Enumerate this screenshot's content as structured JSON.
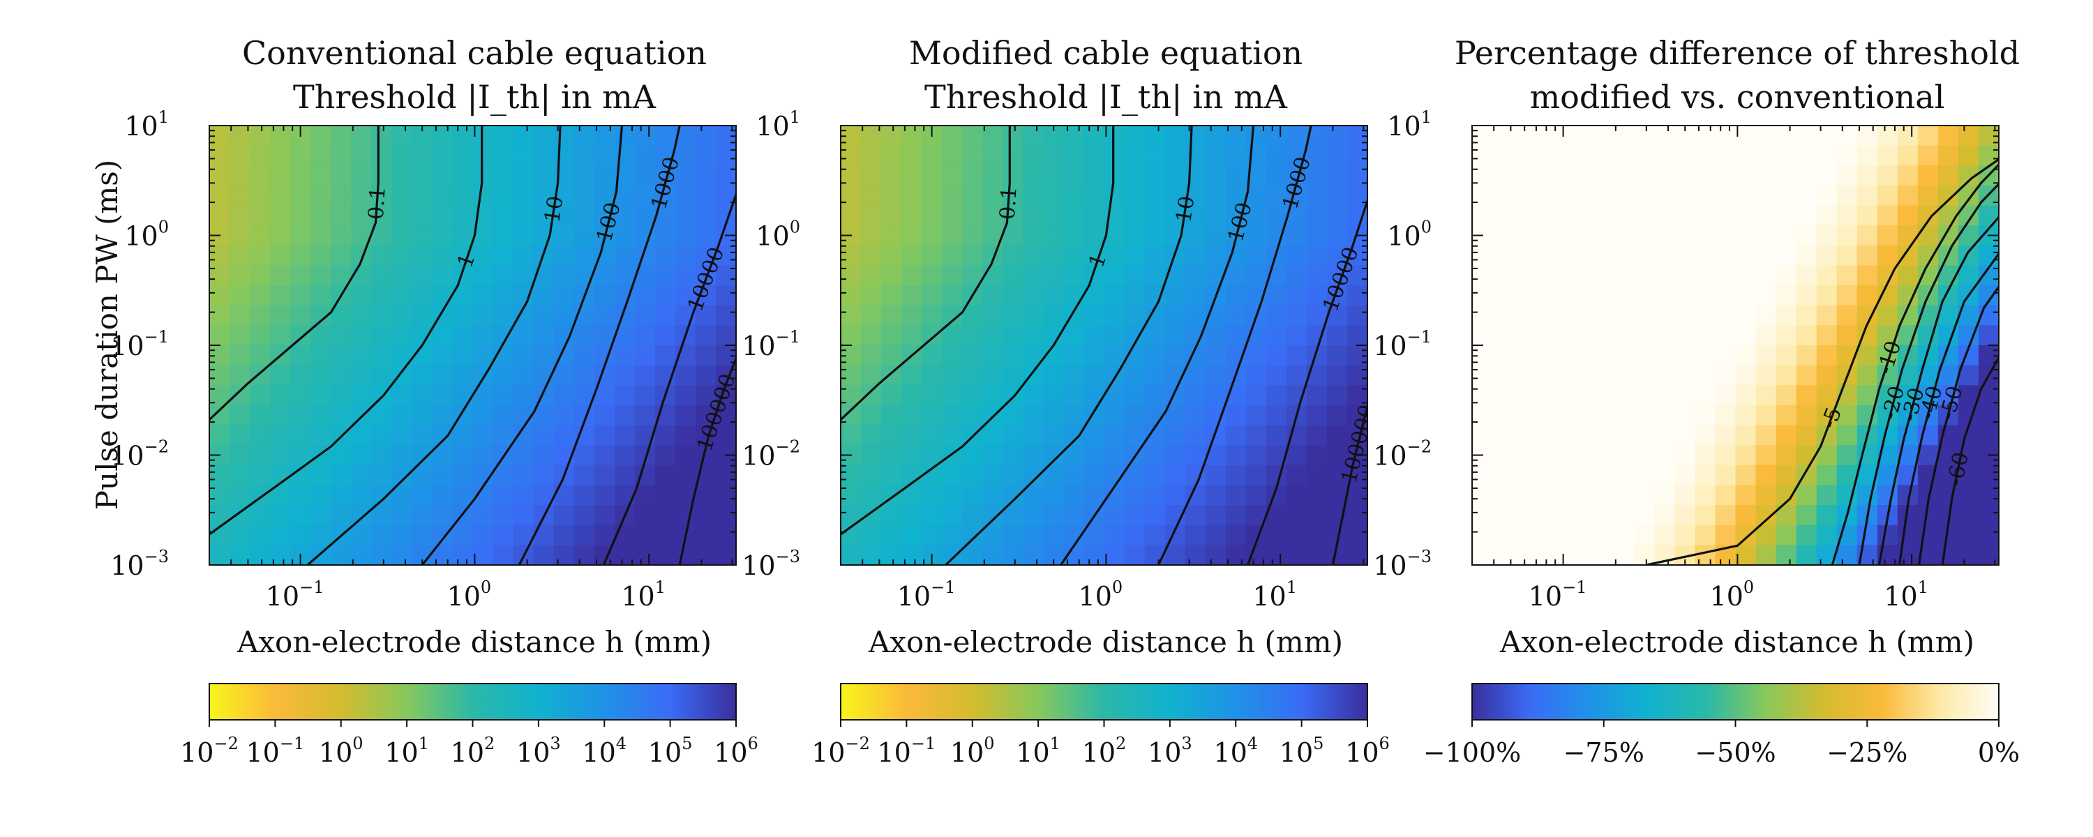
{
  "figure": {
    "shared_ylabel": "Pulse duration PW (ms)"
  },
  "chart_data": [
    {
      "type": "heatmap",
      "title": [
        "Conventional cable equation",
        "Threshold |I_th| in mA"
      ],
      "xlabel": "Axon-electrode distance h (mm)",
      "ylabel": "Pulse duration PW (ms)",
      "x_scale": "log",
      "y_scale": "log",
      "xlim": [
        0.03,
        31.6
      ],
      "ylim": [
        0.001,
        10
      ],
      "x_ticks": [
        {
          "base": "10",
          "exp": "−1",
          "value": 0.1
        },
        {
          "base": "10",
          "exp": "0",
          "value": 1
        },
        {
          "base": "10",
          "exp": "1",
          "value": 10
        }
      ],
      "y_ticks": [
        {
          "base": "10",
          "exp": "−3",
          "value": 0.001
        },
        {
          "base": "10",
          "exp": "−2",
          "value": 0.01
        },
        {
          "base": "10",
          "exp": "−1",
          "value": 0.1
        },
        {
          "base": "10",
          "exp": "0",
          "value": 1
        },
        {
          "base": "10",
          "exp": "1",
          "value": 10
        }
      ],
      "colorbar": {
        "scale": "log",
        "range": [
          0.01,
          1000000
        ],
        "colors": [
          "#f8f51c",
          "#fbba3a",
          "#d4bc2f",
          "#87c85c",
          "#2bb8a8",
          "#11b2cf",
          "#1f92e7",
          "#3a6cf5",
          "#3a2f9e"
        ],
        "ticks": [
          {
            "base": "10",
            "exp": "−2"
          },
          {
            "base": "10",
            "exp": "−1"
          },
          {
            "base": "10",
            "exp": "0"
          },
          {
            "base": "10",
            "exp": "1"
          },
          {
            "base": "10",
            "exp": "2"
          },
          {
            "base": "10",
            "exp": "3"
          },
          {
            "base": "10",
            "exp": "4"
          },
          {
            "base": "10",
            "exp": "5"
          },
          {
            "base": "10",
            "exp": "6"
          }
        ]
      },
      "contours": [
        {
          "level": "0.1",
          "points": [
            [
              0.03,
              0.021
            ],
            [
              0.05,
              0.045
            ],
            [
              0.09,
              0.1
            ],
            [
              0.15,
              0.2
            ],
            [
              0.22,
              0.55
            ],
            [
              0.27,
              1.3
            ],
            [
              0.28,
              3
            ],
            [
              0.28,
              10
            ]
          ]
        },
        {
          "level": "1",
          "points": [
            [
              0.03,
              0.0019
            ],
            [
              0.07,
              0.005
            ],
            [
              0.15,
              0.012
            ],
            [
              0.3,
              0.035
            ],
            [
              0.5,
              0.1
            ],
            [
              0.8,
              0.35
            ],
            [
              1.0,
              1.0
            ],
            [
              1.1,
              3
            ],
            [
              1.1,
              10
            ]
          ]
        },
        {
          "level": "10",
          "points": [
            [
              0.11,
              0.001
            ],
            [
              0.3,
              0.004
            ],
            [
              0.7,
              0.015
            ],
            [
              1.2,
              0.06
            ],
            [
              2.0,
              0.25
            ],
            [
              2.7,
              1.0
            ],
            [
              3.0,
              3
            ],
            [
              3.1,
              10
            ]
          ]
        },
        {
          "level": "100",
          "points": [
            [
              0.5,
              0.001
            ],
            [
              1.0,
              0.004
            ],
            [
              2.2,
              0.025
            ],
            [
              3.5,
              0.12
            ],
            [
              5.3,
              0.7
            ],
            [
              6.5,
              2.5
            ],
            [
              7.0,
              10
            ]
          ]
        },
        {
          "level": "1000",
          "points": [
            [
              1.8,
              0.001
            ],
            [
              3.2,
              0.006
            ],
            [
              5.0,
              0.04
            ],
            [
              7.5,
              0.25
            ],
            [
              11,
              1.5
            ],
            [
              14,
              6
            ],
            [
              15,
              10
            ]
          ]
        },
        {
          "level": "10000",
          "points": [
            [
              5.5,
              0.001
            ],
            [
              8.5,
              0.005
            ],
            [
              12,
              0.03
            ],
            [
              18,
              0.2
            ],
            [
              25,
              0.8
            ],
            [
              32,
              2.5
            ]
          ]
        },
        {
          "level": "100000",
          "points": [
            [
              15,
              0.001
            ],
            [
              18,
              0.004
            ],
            [
              22,
              0.015
            ],
            [
              27,
              0.04
            ],
            [
              32,
              0.08
            ]
          ]
        }
      ]
    },
    {
      "type": "heatmap",
      "title": [
        "Modified cable equation",
        "Threshold |I_th| in mA"
      ],
      "xlabel": "Axon-electrode distance h (mm)",
      "ylabel": "",
      "x_scale": "log",
      "y_scale": "log",
      "xlim": [
        0.03,
        31.6
      ],
      "ylim": [
        0.001,
        10
      ],
      "x_ticks": [
        {
          "base": "10",
          "exp": "−1",
          "value": 0.1
        },
        {
          "base": "10",
          "exp": "0",
          "value": 1
        },
        {
          "base": "10",
          "exp": "1",
          "value": 10
        }
      ],
      "y_ticks": [
        {
          "base": "10",
          "exp": "−3",
          "value": 0.001
        },
        {
          "base": "10",
          "exp": "−2",
          "value": 0.01
        },
        {
          "base": "10",
          "exp": "−1",
          "value": 0.1
        },
        {
          "base": "10",
          "exp": "0",
          "value": 1
        },
        {
          "base": "10",
          "exp": "1",
          "value": 10
        }
      ],
      "colorbar": {
        "scale": "log",
        "range": [
          0.01,
          1000000
        ],
        "colors": [
          "#f8f51c",
          "#fbba3a",
          "#d4bc2f",
          "#87c85c",
          "#2bb8a8",
          "#11b2cf",
          "#1f92e7",
          "#3a6cf5",
          "#3a2f9e"
        ],
        "ticks": [
          {
            "base": "10",
            "exp": "−2"
          },
          {
            "base": "10",
            "exp": "−1"
          },
          {
            "base": "10",
            "exp": "0"
          },
          {
            "base": "10",
            "exp": "1"
          },
          {
            "base": "10",
            "exp": "2"
          },
          {
            "base": "10",
            "exp": "3"
          },
          {
            "base": "10",
            "exp": "4"
          },
          {
            "base": "10",
            "exp": "5"
          },
          {
            "base": "10",
            "exp": "6"
          }
        ]
      },
      "contours": [
        {
          "level": "0.1",
          "points": [
            [
              0.03,
              0.021
            ],
            [
              0.05,
              0.045
            ],
            [
              0.09,
              0.1
            ],
            [
              0.15,
              0.2
            ],
            [
              0.22,
              0.55
            ],
            [
              0.27,
              1.3
            ],
            [
              0.28,
              3
            ],
            [
              0.28,
              10
            ]
          ]
        },
        {
          "level": "1",
          "points": [
            [
              0.03,
              0.0019
            ],
            [
              0.07,
              0.005
            ],
            [
              0.15,
              0.012
            ],
            [
              0.3,
              0.035
            ],
            [
              0.5,
              0.1
            ],
            [
              0.8,
              0.35
            ],
            [
              1.0,
              1.0
            ],
            [
              1.1,
              3
            ],
            [
              1.1,
              10
            ]
          ]
        },
        {
          "level": "10",
          "points": [
            [
              0.12,
              0.001
            ],
            [
              0.3,
              0.004
            ],
            [
              0.7,
              0.015
            ],
            [
              1.2,
              0.06
            ],
            [
              2.0,
              0.25
            ],
            [
              2.7,
              1.0
            ],
            [
              3.0,
              3
            ],
            [
              3.1,
              10
            ]
          ]
        },
        {
          "level": "100",
          "points": [
            [
              0.55,
              0.001
            ],
            [
              1.0,
              0.004
            ],
            [
              2.2,
              0.025
            ],
            [
              3.5,
              0.12
            ],
            [
              5.3,
              0.7
            ],
            [
              6.5,
              2.5
            ],
            [
              7.0,
              10
            ]
          ]
        },
        {
          "level": "1000",
          "points": [
            [
              2.0,
              0.001
            ],
            [
              3.4,
              0.006
            ],
            [
              5.2,
              0.04
            ],
            [
              7.8,
              0.25
            ],
            [
              11,
              1.5
            ],
            [
              14,
              6
            ],
            [
              15,
              10
            ]
          ]
        },
        {
          "level": "10000",
          "points": [
            [
              6.5,
              0.001
            ],
            [
              9.5,
              0.005
            ],
            [
              13,
              0.03
            ],
            [
              19,
              0.2
            ],
            [
              26,
              0.8
            ],
            [
              32,
              2.2
            ]
          ]
        },
        {
          "level": "100000",
          "points": [
            [
              20,
              0.001
            ],
            [
              23,
              0.003
            ],
            [
              26,
              0.008
            ],
            [
              30,
              0.02
            ],
            [
              32,
              0.03
            ]
          ]
        }
      ]
    },
    {
      "type": "heatmap",
      "title": [
        "Percentage difference of threshold",
        "modified vs. conventional"
      ],
      "xlabel": "Axon-electrode distance h (mm)",
      "ylabel": "",
      "x_scale": "log",
      "y_scale": "log",
      "xlim": [
        0.03,
        31.6
      ],
      "ylim": [
        0.001,
        10
      ],
      "x_ticks": [
        {
          "base": "10",
          "exp": "−1",
          "value": 0.1
        },
        {
          "base": "10",
          "exp": "0",
          "value": 1
        },
        {
          "base": "10",
          "exp": "1",
          "value": 10
        }
      ],
      "y_ticks": [
        {
          "base": "10",
          "exp": "−3",
          "value": 0.001
        },
        {
          "base": "10",
          "exp": "−2",
          "value": 0.01
        },
        {
          "base": "10",
          "exp": "−1",
          "value": 0.1
        },
        {
          "base": "10",
          "exp": "0",
          "value": 1
        },
        {
          "base": "10",
          "exp": "1",
          "value": 10
        }
      ],
      "colorbar": {
        "scale": "linear",
        "range": [
          -100,
          0
        ],
        "colors": [
          "#3a2f9e",
          "#3a6cf5",
          "#1f92e7",
          "#11b2cf",
          "#2bb8a8",
          "#87c85c",
          "#d4bc2f",
          "#fbba3a",
          "#fdeaa8",
          "#fffdf6"
        ],
        "ticks": [
          {
            "label": "−100%",
            "value": -100
          },
          {
            "label": "−75%",
            "value": -75
          },
          {
            "label": "−50%",
            "value": -50
          },
          {
            "label": "−25%",
            "value": -25
          },
          {
            "label": "0%",
            "value": 0
          }
        ]
      },
      "contours": [
        {
          "level": "-5",
          "points": [
            [
              0.3,
              0.001
            ],
            [
              1.0,
              0.0015
            ],
            [
              2.0,
              0.004
            ],
            [
              3.0,
              0.012
            ],
            [
              4.0,
              0.04
            ],
            [
              5.5,
              0.15
            ],
            [
              8,
              0.5
            ],
            [
              13,
              1.5
            ],
            [
              22,
              3.3
            ],
            [
              32,
              5
            ]
          ]
        },
        {
          "level": "-10",
          "points": [
            [
              3.5,
              0.001
            ],
            [
              4.3,
              0.003
            ],
            [
              5.2,
              0.01
            ],
            [
              6.5,
              0.04
            ],
            [
              8.5,
              0.15
            ],
            [
              12,
              0.5
            ],
            [
              18,
              1.5
            ],
            [
              25,
              3
            ],
            [
              32,
              4.5
            ]
          ]
        },
        {
          "level": "-20",
          "points": [
            [
              5.0,
              0.001
            ],
            [
              5.8,
              0.004
            ],
            [
              7.0,
              0.015
            ],
            [
              8.8,
              0.06
            ],
            [
              12,
              0.25
            ],
            [
              17,
              0.8
            ],
            [
              25,
              2.0
            ],
            [
              32,
              3.0
            ]
          ]
        },
        {
          "level": "-30",
          "points": [
            [
              6.5,
              0.001
            ],
            [
              7.6,
              0.004
            ],
            [
              9.0,
              0.014
            ],
            [
              11.5,
              0.06
            ],
            [
              15,
              0.25
            ],
            [
              21,
              0.7
            ],
            [
              32,
              1.5
            ]
          ]
        },
        {
          "level": "-40",
          "points": [
            [
              8.5,
              0.001
            ],
            [
              9.6,
              0.004
            ],
            [
              11.5,
              0.015
            ],
            [
              14.5,
              0.06
            ],
            [
              20,
              0.25
            ],
            [
              32,
              0.7
            ]
          ]
        },
        {
          "level": "-50",
          "points": [
            [
              11,
              0.001
            ],
            [
              12.5,
              0.004
            ],
            [
              15,
              0.015
            ],
            [
              19,
              0.06
            ],
            [
              26,
              0.22
            ],
            [
              32,
              0.35
            ]
          ]
        },
        {
          "level": "-60",
          "points": [
            [
              15,
              0.001
            ],
            [
              17,
              0.004
            ],
            [
              20,
              0.014
            ],
            [
              25,
              0.04
            ],
            [
              32,
              0.08
            ]
          ]
        }
      ]
    }
  ]
}
